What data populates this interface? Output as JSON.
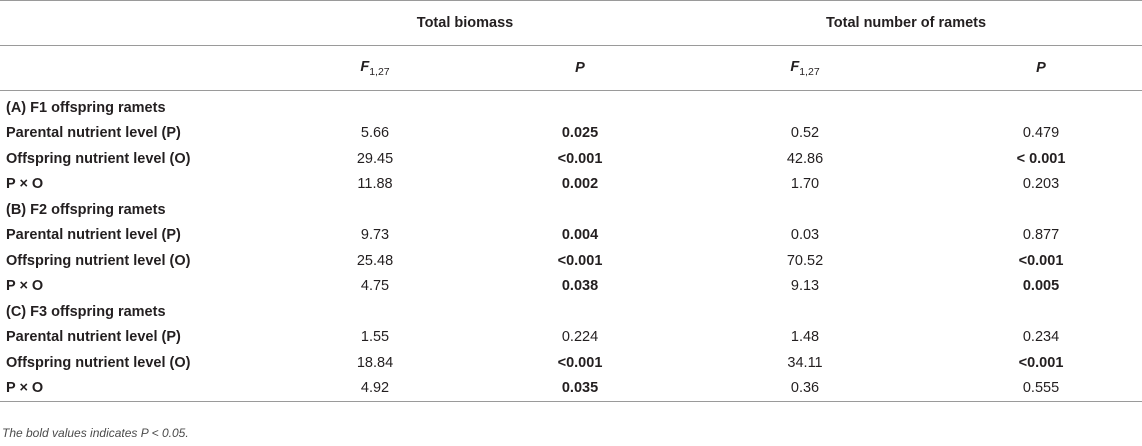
{
  "header": {
    "group1": "Total biomass",
    "group2": "Total number of ramets",
    "stat_f_letter": "F",
    "stat_f_sub": "1,27",
    "stat_p": "P"
  },
  "sections": [
    {
      "title": "(A) F1 offspring ramets",
      "rows": [
        {
          "label": "Parental nutrient level (P)",
          "biomass_f": "5.66",
          "biomass_p": "0.025",
          "biomass_p_bold": true,
          "ramets_f": "0.52",
          "ramets_p": "0.479",
          "ramets_p_bold": false
        },
        {
          "label": "Offspring nutrient level (O)",
          "biomass_f": "29.45",
          "biomass_p": "<0.001",
          "biomass_p_bold": true,
          "ramets_f": "42.86",
          "ramets_p": "< 0.001",
          "ramets_p_bold": true
        },
        {
          "label": "P × O",
          "biomass_f": "11.88",
          "biomass_p": "0.002",
          "biomass_p_bold": true,
          "ramets_f": "1.70",
          "ramets_p": "0.203",
          "ramets_p_bold": false
        }
      ]
    },
    {
      "title": "(B) F2 offspring ramets",
      "rows": [
        {
          "label": "Parental nutrient level (P)",
          "biomass_f": "9.73",
          "biomass_p": "0.004",
          "biomass_p_bold": true,
          "ramets_f": "0.03",
          "ramets_p": "0.877",
          "ramets_p_bold": false
        },
        {
          "label": "Offspring nutrient level (O)",
          "biomass_f": "25.48",
          "biomass_p": "<0.001",
          "biomass_p_bold": true,
          "ramets_f": "70.52",
          "ramets_p": "<0.001",
          "ramets_p_bold": true
        },
        {
          "label": "P × O",
          "biomass_f": "4.75",
          "biomass_p": "0.038",
          "biomass_p_bold": true,
          "ramets_f": "9.13",
          "ramets_p": "0.005",
          "ramets_p_bold": true
        }
      ]
    },
    {
      "title": "(C) F3 offspring ramets",
      "rows": [
        {
          "label": "Parental nutrient level (P)",
          "biomass_f": "1.55",
          "biomass_p": "0.224",
          "biomass_p_bold": false,
          "ramets_f": "1.48",
          "ramets_p": "0.234",
          "ramets_p_bold": false
        },
        {
          "label": "Offspring nutrient level (O)",
          "biomass_f": "18.84",
          "biomass_p": "<0.001",
          "biomass_p_bold": true,
          "ramets_f": "34.11",
          "ramets_p": "<0.001",
          "ramets_p_bold": true
        },
        {
          "label": "P × O",
          "biomass_f": "4.92",
          "biomass_p": "0.035",
          "biomass_p_bold": true,
          "ramets_f": "0.36",
          "ramets_p": "0.555",
          "ramets_p_bold": false
        }
      ]
    }
  ],
  "footnote": "The bold values indicates P < 0.05."
}
